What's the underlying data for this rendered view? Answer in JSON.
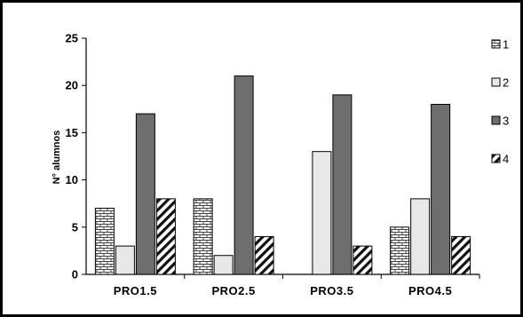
{
  "chart_data": {
    "type": "bar",
    "title": "",
    "xlabel": "",
    "ylabel": "N° alumnos",
    "ylim": [
      0,
      25
    ],
    "yticks": [
      0,
      5,
      10,
      15,
      20,
      25
    ],
    "grid": false,
    "legend_position": "right",
    "categories": [
      "PRO1.5",
      "PRO2.5",
      "PRO3.5",
      "PRO4.5"
    ],
    "series": [
      {
        "name": "1",
        "values": [
          7,
          8,
          0,
          5
        ],
        "pattern": "brick",
        "color": "#ffffff"
      },
      {
        "name": "2",
        "values": [
          3,
          2,
          13,
          8
        ],
        "pattern": "solid",
        "color": "#e8e8e8"
      },
      {
        "name": "3",
        "values": [
          17,
          21,
          19,
          18
        ],
        "pattern": "solid",
        "color": "#6e6e6e"
      },
      {
        "name": "4",
        "values": [
          8,
          4,
          3,
          4
        ],
        "pattern": "diagonal",
        "color": "#ffffff"
      }
    ]
  }
}
